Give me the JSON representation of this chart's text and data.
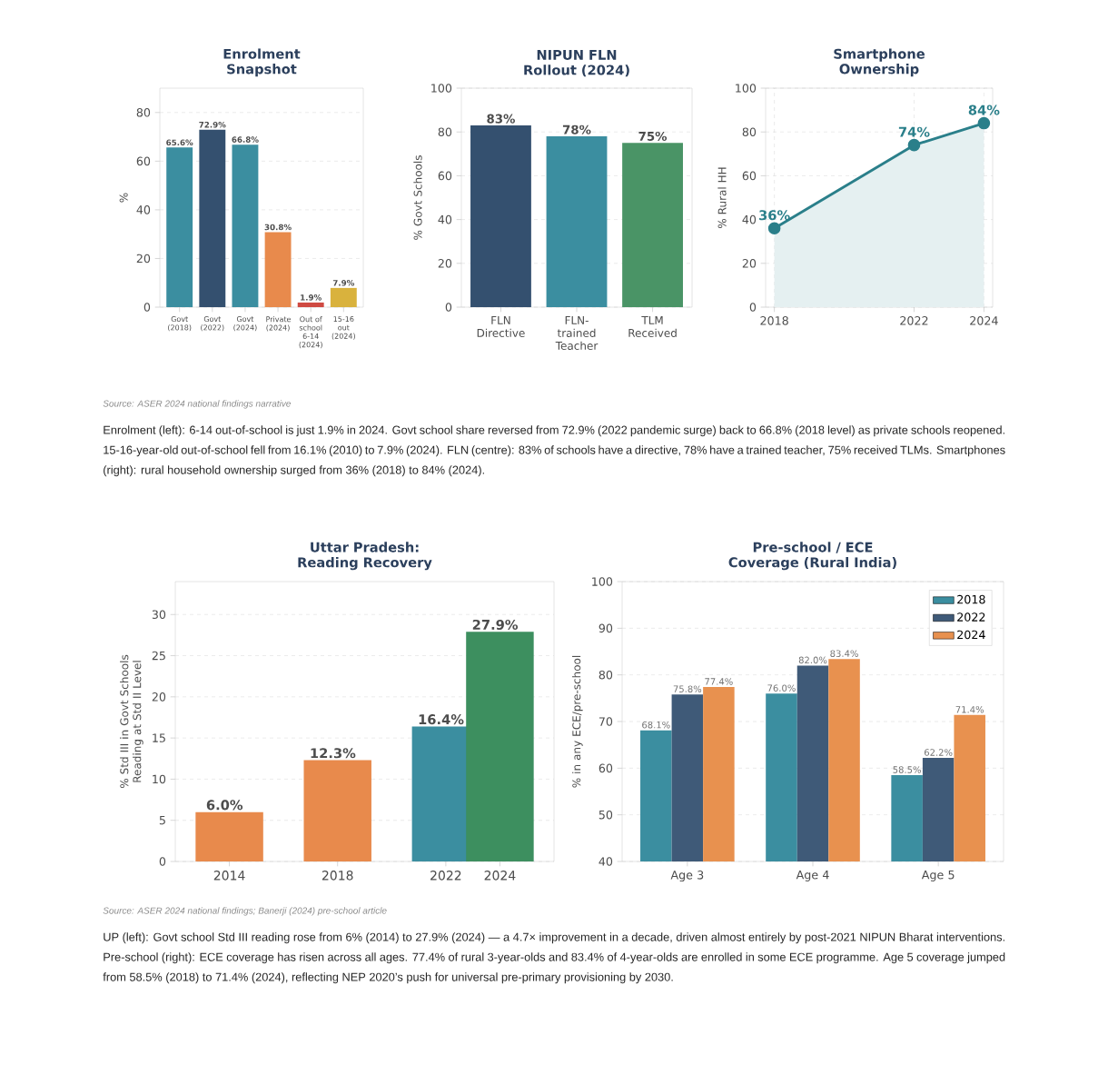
{
  "chart_data": [
    {
      "type": "bar",
      "title": "Enrolment Snapshot",
      "ylabel": "%",
      "categories": [
        "Govt (2018)",
        "Govt (2022)",
        "Govt (2024)",
        "Private (2024)",
        "Out of school 6-14 (2024)",
        "15-16 out (2024)"
      ],
      "values": [
        65.6,
        72.9,
        66.8,
        30.8,
        1.9,
        7.9
      ],
      "colors": [
        "#3b8ea0",
        "#34506f",
        "#3b8ea0",
        "#e88a4c",
        "#cf4a42",
        "#d9b23d"
      ],
      "value_labels": [
        "65.6%",
        "72.9%",
        "66.8%",
        "30.8%",
        "1.9%",
        "7.9%"
      ],
      "ylim": [
        0,
        90
      ],
      "yticks": [
        0,
        20,
        40,
        60,
        80
      ],
      "grid": "y",
      "annotations": [
        "Source: ASER 2024 national findings narrative",
        "Enrolment (left): 6-14 out-of-school is just 1.9% in 2024. Govt school share reversed from 72.9% (2022 pandemic surge) back to 66.8% (2018 level) as private schools reopened. 15-16-year-old out-of-school fell from 16.1% (2010) to 7.9% (2024). FLN (centre): 83% of schools have a directive, 78% have a trained teacher, 75% received TLMs. Smartphones (right): rural household ownership surged from 36% (2018) to 84% (2024)."
      ]
    },
    {
      "type": "bar",
      "title": "NIPUN FLN Rollout (2024)",
      "ylabel": "% Govt Schools",
      "categories": [
        "FLN Directive",
        "FLN-trained Teacher",
        "TLM Received"
      ],
      "values": [
        83,
        78,
        75
      ],
      "colors": [
        "#34506f",
        "#3b8ea0",
        "#4a9466"
      ],
      "value_labels": [
        "83%",
        "78%",
        "75%"
      ],
      "ylim": [
        0,
        100
      ],
      "yticks": [
        0,
        20,
        40,
        60,
        80,
        100
      ],
      "grid": "y"
    },
    {
      "type": "area",
      "title": "Smartphone Ownership",
      "ylabel": "% Rural HH",
      "x": [
        2018,
        2022,
        2024
      ],
      "values": [
        36,
        74,
        84
      ],
      "color": "#2a7f8a",
      "marker": "circle",
      "value_labels": [
        "36%",
        "74%",
        "84%"
      ],
      "xlim": [
        2017.75,
        2024.25
      ],
      "xticks": [
        2018,
        2022,
        2024
      ],
      "ylim": [
        0,
        100
      ],
      "yticks": [
        0,
        20,
        40,
        60,
        80,
        100
      ],
      "grid": true
    },
    {
      "type": "bar",
      "title": "Uttar Pradesh: Reading Recovery",
      "ylabel": "% Std III in Govt Schools Reading at Std II Level",
      "x": [
        2014,
        2018,
        2022,
        2024
      ],
      "values": [
        6.0,
        12.3,
        16.4,
        27.9
      ],
      "colors": [
        "#e88a4c",
        "#e88a4c",
        "#3b8ea0",
        "#3d8f5f"
      ],
      "value_labels": [
        "6.0%",
        "12.3%",
        "16.4%",
        "27.9%"
      ],
      "xlim": [
        2012,
        2026
      ],
      "xticks": [
        2014,
        2018,
        2022,
        2024
      ],
      "ylim": [
        0,
        34
      ],
      "yticks": [
        0,
        5,
        10,
        15,
        20,
        25,
        30
      ],
      "grid": "y",
      "annotations": [
        "Source: ASER 2024 national findings; Banerji (2024) pre-school article",
        "UP (left): Govt school Std III reading rose from 6% (2014) to 27.9% (2024) — a 4.7× improvement in a decade, driven almost entirely by post-2021 NIPUN Bharat interventions. Pre-school (right): ECE coverage has risen across all ages. 77.4% of rural 3-year-olds and 83.4% of 4-year-olds are enrolled in some ECE programme. Age 5 coverage jumped from 58.5% (2018) to 71.4% (2024), reflecting NEP 2020’s push for universal pre-primary provisioning by 2030."
      ]
    },
    {
      "type": "bar",
      "title": "Pre-school / ECE Coverage (Rural India)",
      "ylabel": "% in any ECE/pre-school",
      "categories": [
        "Age 3",
        "Age 4",
        "Age 5"
      ],
      "series": [
        {
          "name": "2018",
          "color": "#3b8ea0",
          "values": [
            68.1,
            76.0,
            58.5
          ],
          "value_labels": [
            "68.1%",
            "76.0%",
            "58.5%"
          ]
        },
        {
          "name": "2022",
          "color": "#3f5a78",
          "values": [
            75.8,
            82.0,
            62.2
          ],
          "value_labels": [
            "75.8%",
            "82.0%",
            "62.2%"
          ]
        },
        {
          "name": "2024",
          "color": "#e8914f",
          "values": [
            77.4,
            83.4,
            71.4
          ],
          "value_labels": [
            "77.4%",
            "83.4%",
            "71.4%"
          ]
        }
      ],
      "ylim": [
        40,
        100
      ],
      "yticks": [
        40,
        50,
        60,
        70,
        80,
        90,
        100
      ],
      "grid": "y",
      "legend": "top right"
    }
  ]
}
